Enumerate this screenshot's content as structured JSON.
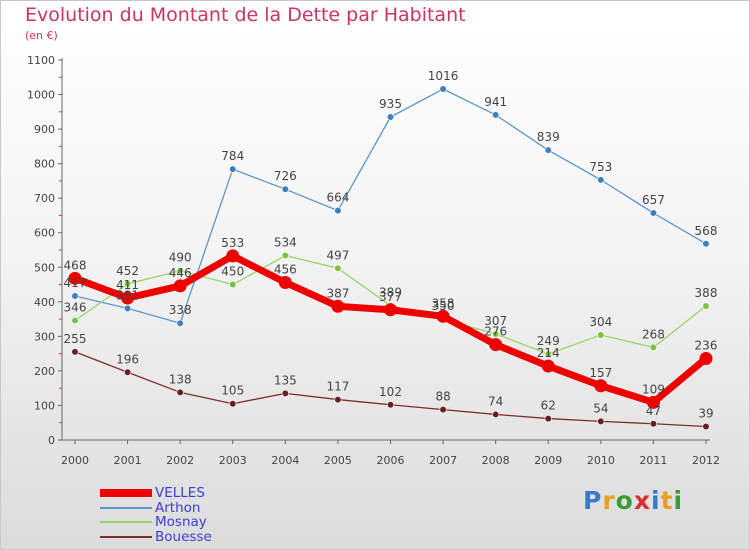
{
  "chart_data": {
    "type": "line",
    "title": "Evolution du Montant de la Dette par Habitant",
    "subtitle": "(en €)",
    "x": [
      "2000",
      "2001",
      "2002",
      "2003",
      "2004",
      "2005",
      "2006",
      "2007",
      "2008",
      "2009",
      "2010",
      "2011",
      "2012"
    ],
    "yticks": [
      "0",
      "100",
      "200",
      "300",
      "400",
      "500",
      "600",
      "700",
      "800",
      "900",
      "1000",
      "1100"
    ],
    "ylim": [
      0,
      1100
    ],
    "grid": false,
    "legend_position": "bottom-left",
    "series": [
      {
        "name": "Arthon",
        "color": "#5b96cc",
        "point": "#3d7fbf",
        "values": [
          417,
          381,
          338,
          784,
          726,
          664,
          935,
          1016,
          941,
          839,
          753,
          657,
          568
        ],
        "labels": [
          "417",
          "381",
          "338",
          "784",
          "726",
          "664",
          "935",
          "1016",
          "941",
          "839",
          "753",
          "657",
          "568"
        ]
      },
      {
        "name": "Mosnay",
        "color": "#9ad468",
        "point": "#7cc242",
        "values": [
          346,
          452,
          490,
          450,
          534,
          497,
          389,
          350,
          307,
          249,
          304,
          268,
          388
        ],
        "labels": [
          "346",
          "452",
          "490",
          "450",
          "534",
          "497",
          "389",
          "350",
          "307",
          "249",
          "304",
          "268",
          "388"
        ]
      },
      {
        "name": "Bouesse",
        "color": "#7a2e2e",
        "point": "#6a1f1f",
        "values": [
          255,
          196,
          138,
          105,
          135,
          117,
          102,
          88,
          74,
          62,
          54,
          47,
          39
        ],
        "labels": [
          "255",
          "196",
          "138",
          "105",
          "135",
          "117",
          "102",
          "88",
          "74",
          "62",
          "54",
          "47",
          "39"
        ]
      },
      {
        "name": "VELLES",
        "color": "#ee0000",
        "point": "#ee0000",
        "values": [
          468,
          411,
          446,
          533,
          456,
          387,
          377,
          358,
          276,
          214,
          157,
          109,
          236
        ],
        "labels": [
          "468",
          "411",
          "446",
          "533",
          "456",
          "387",
          "377",
          "358",
          "276",
          "214",
          "157",
          "109",
          "236"
        ]
      }
    ]
  },
  "legend": {
    "items": [
      {
        "label": "VELLES",
        "color": "#ee0000"
      },
      {
        "label": "Arthon",
        "color": "#5b96cc"
      },
      {
        "label": "Mosnay",
        "color": "#9ad468"
      },
      {
        "label": "Bouesse",
        "color": "#7a2e2e"
      }
    ]
  },
  "brand": {
    "letters": [
      "P",
      "r",
      "o",
      "x",
      "i",
      "t",
      "i"
    ],
    "colors": [
      "#3a78c8",
      "#e8a020",
      "#3a9a3a",
      "#d83030",
      "#3a78c8",
      "#e8a020",
      "#3a9a3a"
    ]
  }
}
